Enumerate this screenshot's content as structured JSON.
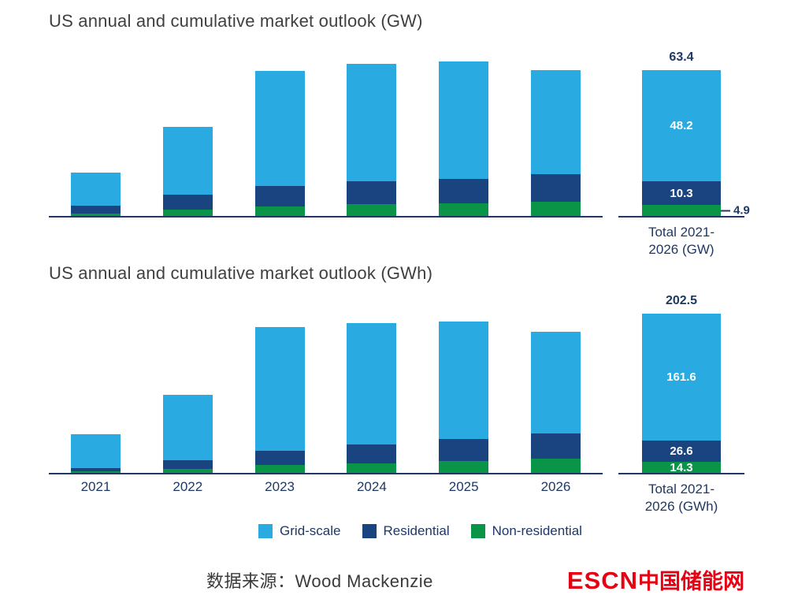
{
  "chart_data": [
    {
      "type": "bar",
      "stacked": true,
      "title": "US annual and cumulative market outlook (GW)",
      "unit": "GW",
      "categories": [
        "2021",
        "2022",
        "2023",
        "2024",
        "2025",
        "2026"
      ],
      "category_labels_visible": false,
      "series": [
        {
          "name": "Grid-scale",
          "color": "#29abe2",
          "values": [
            2.9,
            5.85,
            10.0,
            10.2,
            10.2,
            9.05
          ]
        },
        {
          "name": "Residential",
          "color": "#1a4480",
          "values": [
            0.7,
            1.3,
            1.8,
            2.0,
            2.1,
            2.4
          ]
        },
        {
          "name": "Non-residential",
          "color": "#0a9447",
          "values": [
            0.2,
            0.55,
            0.8,
            1.0,
            1.1,
            1.25
          ]
        }
      ],
      "total_bar": {
        "caption_line1": "Total 2021-",
        "caption_line2": "2026 (GW)",
        "total_label": "63.4",
        "segments": [
          {
            "name": "Grid-scale",
            "value": 48.2,
            "label": "48.2",
            "label_inside": true
          },
          {
            "name": "Residential",
            "value": 10.3,
            "label": "10.3",
            "label_inside": true
          },
          {
            "name": "Non-residential",
            "value": 4.9,
            "label": "4.9",
            "label_inside": false
          }
        ]
      }
    },
    {
      "type": "bar",
      "stacked": true,
      "title": "US annual and cumulative market outlook (GWh)",
      "unit": "GWh",
      "categories": [
        "2021",
        "2022",
        "2023",
        "2024",
        "2025",
        "2026"
      ],
      "category_labels_visible": true,
      "series": [
        {
          "name": "Grid-scale",
          "color": "#29abe2",
          "values": [
            9.8,
            18.7,
            35.4,
            34.9,
            33.6,
            29.2
          ]
        },
        {
          "name": "Residential",
          "color": "#1a4480",
          "values": [
            1.0,
            2.5,
            4.0,
            5.5,
            6.3,
            7.3
          ]
        },
        {
          "name": "Non-residential",
          "color": "#0a9447",
          "values": [
            0.5,
            1.2,
            2.2,
            2.8,
            3.5,
            4.1
          ]
        }
      ],
      "total_bar": {
        "caption_line1": "Total 2021-",
        "caption_line2": "2026 (GWh)",
        "total_label": "202.5",
        "segments": [
          {
            "name": "Grid-scale",
            "value": 161.6,
            "label": "161.6",
            "label_inside": true
          },
          {
            "name": "Residential",
            "value": 26.6,
            "label": "26.6",
            "label_inside": true
          },
          {
            "name": "Non-residential",
            "value": 14.3,
            "label": "14.3",
            "label_inside": true
          }
        ]
      }
    }
  ],
  "legend": {
    "items": [
      {
        "label": "Grid-scale",
        "color": "#29abe2"
      },
      {
        "label": "Residential",
        "color": "#1a4480"
      },
      {
        "label": "Non-residential",
        "color": "#0a9447"
      }
    ]
  },
  "footer": {
    "source_text": "数据来源：Wood Mackenzie",
    "logo_text_en": "ESCN",
    "logo_text_cn": "中国储能网",
    "logo_color": "#e60012"
  },
  "colors": {
    "axis": "#1f3864",
    "label_navy": "#1f3864",
    "title_gray": "#3f3f3f"
  }
}
